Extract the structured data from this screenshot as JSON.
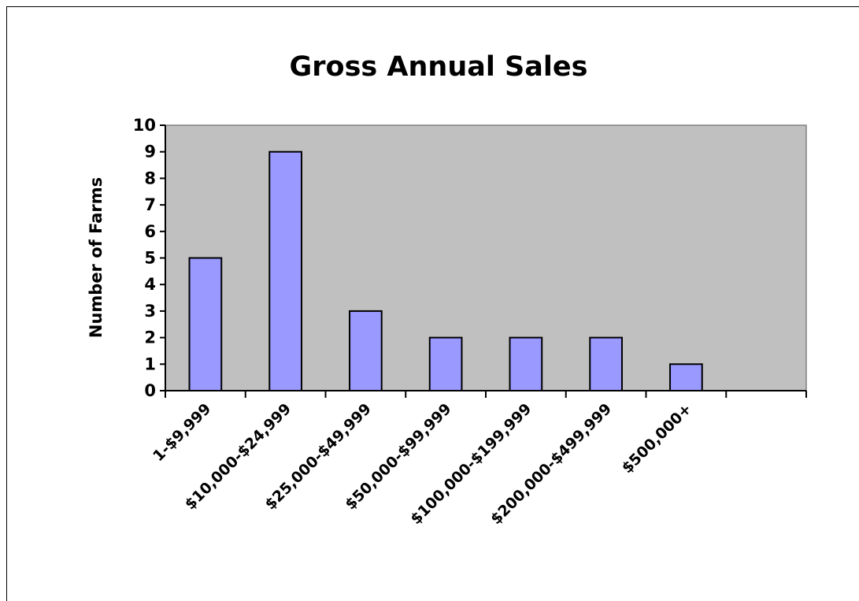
{
  "chart_data": {
    "type": "bar",
    "title": "Gross Annual Sales",
    "xlabel": "",
    "ylabel": "Number of Farms",
    "categories": [
      "1-$9,999",
      "$10,000-$24,999",
      "$25,000-$49,999",
      "$50,000-$99,999",
      "$100,000-$199,999",
      "$200,000-$499,999",
      "$500,000+"
    ],
    "values": [
      5,
      9,
      3,
      2,
      2,
      2,
      1
    ],
    "ylim": [
      0,
      10
    ],
    "yticks": [
      0,
      1,
      2,
      3,
      4,
      5,
      6,
      7,
      8,
      9,
      10
    ],
    "category_slots": 8,
    "grid": false,
    "legend": "none"
  },
  "colors": {
    "plot_background": "#c0c0c0",
    "bar_fill": "#9999ff",
    "bar_stroke": "#000000",
    "axis": "#000000",
    "plot_border": "#808080"
  }
}
